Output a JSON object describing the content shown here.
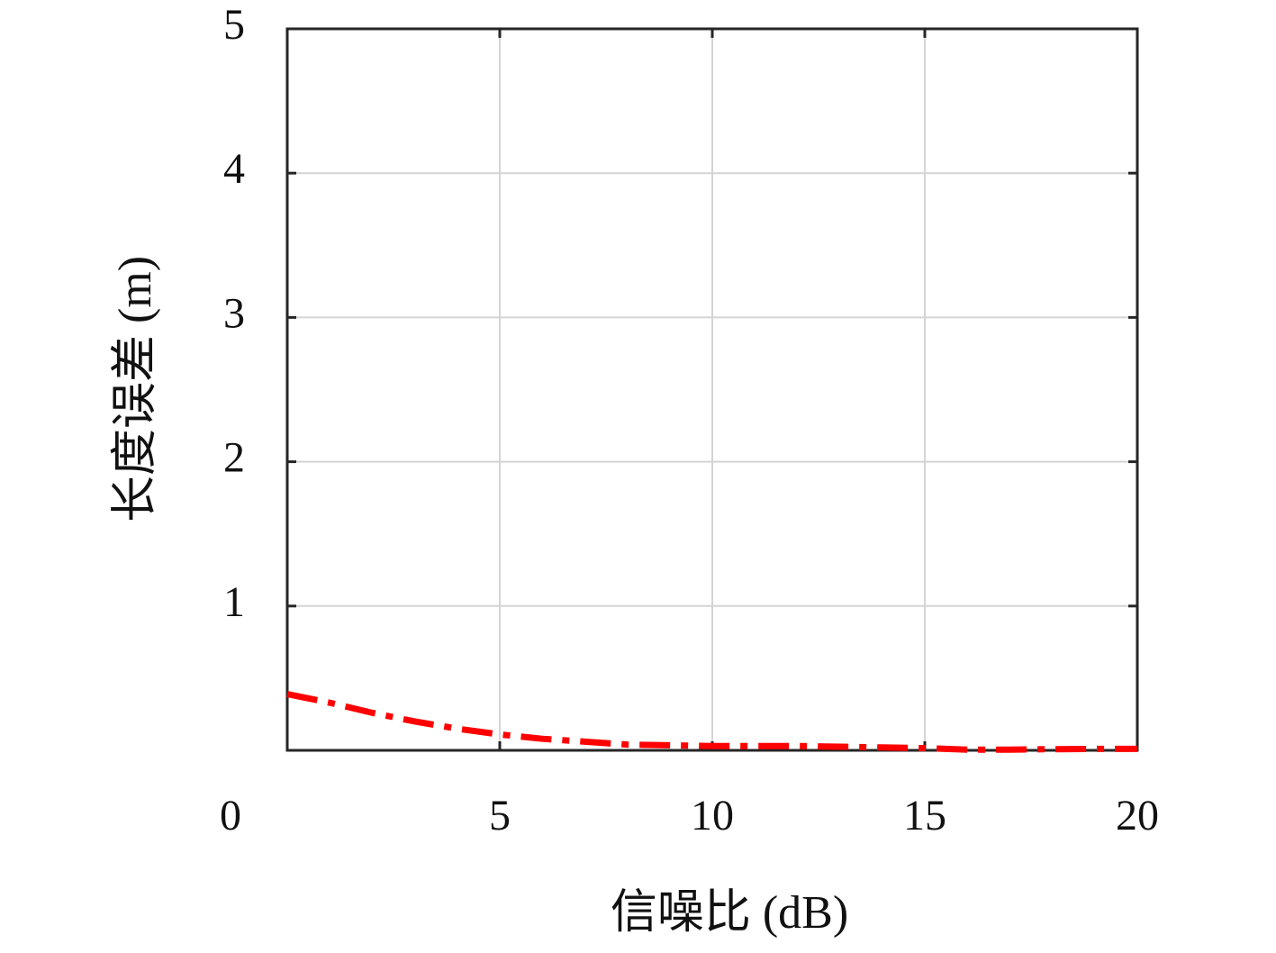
{
  "chart_data": {
    "type": "line",
    "xlabel": "信噪比 (dB)",
    "ylabel": "长度误差 (m)",
    "x": [
      0,
      1,
      2,
      3,
      4,
      5,
      6,
      7,
      8,
      9,
      10,
      11,
      12,
      13,
      14,
      15,
      16,
      17,
      18,
      19,
      20
    ],
    "series": [
      {
        "color": "#ff0000",
        "values": [
          0.39,
          0.33,
          0.26,
          0.2,
          0.15,
          0.11,
          0.08,
          0.06,
          0.04,
          0.035,
          0.03,
          0.03,
          0.03,
          0.025,
          0.02,
          0.015,
          0.005,
          0.005,
          0.008,
          0.01,
          0.01
        ]
      }
    ],
    "xlim": [
      0,
      20
    ],
    "xticks": [
      0,
      5,
      10,
      15,
      20
    ],
    "ylim": [
      0,
      5
    ],
    "yticks": [
      1,
      2,
      3,
      4,
      5
    ],
    "grid": true,
    "line_style": "dashdot"
  }
}
